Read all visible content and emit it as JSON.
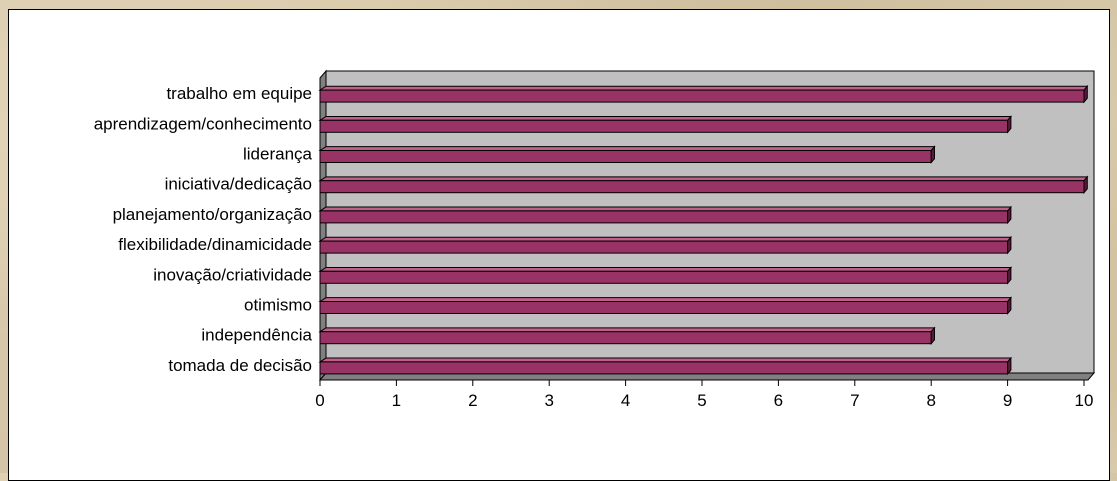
{
  "chart_data": {
    "type": "bar",
    "orientation": "horizontal",
    "style": "3d",
    "categories": [
      "trabalho em equipe",
      "aprendizagem/conhecimento",
      "liderança",
      "iniciativa/dedicação",
      "planejamento/organização",
      "flexibilidade/dinamicidade",
      "inovação/criatividade",
      "otimismo",
      "independência",
      "tomada de decisão"
    ],
    "values": [
      10,
      9,
      8,
      10,
      9,
      9,
      9,
      9,
      8,
      9
    ],
    "xlim": [
      0,
      10
    ],
    "xticks": [
      "0",
      "1",
      "2",
      "3",
      "4",
      "5",
      "6",
      "7",
      "8",
      "9",
      "10"
    ],
    "grid": false,
    "legend": "none",
    "colors": {
      "bar_front": "#993366",
      "bar_top": "#c0608a",
      "bar_side": "#5a1a3a",
      "plot_back": "#c0c0c0",
      "plot_floor": "#808080"
    }
  }
}
